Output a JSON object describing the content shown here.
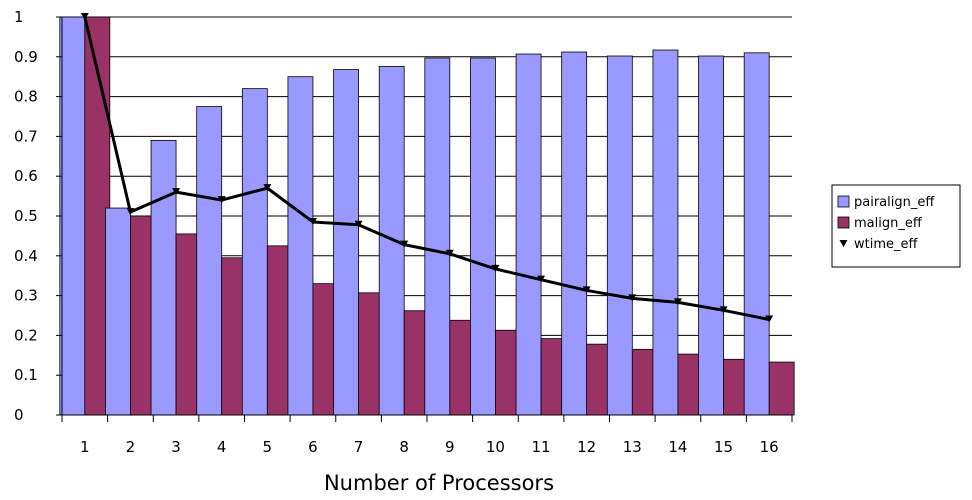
{
  "chart_data": {
    "type": "bar",
    "title": "",
    "xlabel": "Number of Processors",
    "ylabel": "",
    "ylim": [
      0,
      1
    ],
    "yticks": [
      "0",
      "0.1",
      "0.2",
      "0.3",
      "0.4",
      "0.5",
      "0.6",
      "0.7",
      "0.8",
      "0.9",
      "1"
    ],
    "grid": "horizontal",
    "legend_position": "right",
    "categories": [
      "1",
      "2",
      "3",
      "4",
      "5",
      "6",
      "7",
      "8",
      "9",
      "10",
      "11",
      "12",
      "13",
      "14",
      "15",
      "16"
    ],
    "series": [
      {
        "name": "pairalign_eff",
        "kind": "bar",
        "color": "#9999ff",
        "values": [
          1.0,
          0.52,
          0.69,
          0.775,
          0.82,
          0.85,
          0.868,
          0.876,
          0.897,
          0.897,
          0.907,
          0.912,
          0.902,
          0.917,
          0.902,
          0.91
        ]
      },
      {
        "name": "malign_eff",
        "kind": "bar",
        "color": "#993366",
        "values": [
          1.0,
          0.5,
          0.455,
          0.395,
          0.425,
          0.33,
          0.307,
          0.262,
          0.238,
          0.213,
          0.192,
          0.178,
          0.165,
          0.153,
          0.14,
          0.133
        ]
      },
      {
        "name": "wtime_eff",
        "kind": "line",
        "color": "#000000",
        "marker": "down-triangle",
        "values": [
          1.0,
          0.51,
          0.56,
          0.54,
          0.57,
          0.485,
          0.478,
          0.428,
          0.405,
          0.367,
          0.34,
          0.313,
          0.293,
          0.283,
          0.263,
          0.24
        ]
      }
    ]
  }
}
